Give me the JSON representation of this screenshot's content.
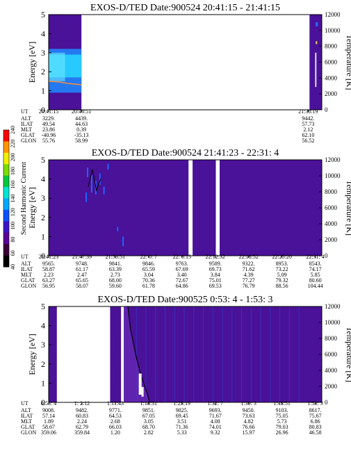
{
  "figure": {
    "colorbar": {
      "label": "Second Harmonic Current",
      "ticks": [
        "40",
        "60",
        "80",
        "100",
        "120",
        "140",
        "160",
        "180",
        "200",
        "220",
        "240"
      ],
      "colors": [
        "#000000",
        "#3a0038",
        "#5a0096",
        "#3c14c8",
        "#0a50ff",
        "#00aaff",
        "#00e6d2",
        "#00c83c",
        "#7ddc00",
        "#f0f000",
        "#ff9600",
        "#ff0000"
      ]
    },
    "colors": {
      "background_field": "#4a1199",
      "cool_band": "#1e8cff",
      "warm_band": "#28d2ff",
      "white_gap": "#ffffff",
      "temperature_line": "#ff8c3c"
    }
  },
  "chart_data": [
    {
      "type": "heatmap",
      "title": "EXOS-D/TED   Date:900524  20:41:15 - 21:41:15",
      "ylabel": "Energy [eV]",
      "ylim": [
        0,
        5
      ],
      "yticks": [
        "0",
        "1",
        "2",
        "3",
        "4",
        "5"
      ],
      "y2label": "Temperature [K]",
      "y2lim": [
        0,
        12000
      ],
      "y2ticks": [
        "0",
        "2000",
        "4000",
        "6000",
        "8000",
        "10000",
        "12000"
      ],
      "orbit_rows": [
        "UT",
        "ALT",
        "ILAT",
        "MLT",
        "GLAT",
        "GLON"
      ],
      "columns": [
        {
          "t": 0.0,
          "UT": "20:41:15",
          "ALT": "3229.",
          "ILAT": "49.54",
          "MLT": "23.86",
          "GLAT": "-40.96",
          "GLON": "55.76"
        },
        {
          "t": 0.12,
          "UT": "20:48:51",
          "ALT": "4439.",
          "ILAT": "44.63",
          "MLT": "0.39",
          "GLAT": "-35.13",
          "GLON": "58.99"
        },
        {
          "t": 0.95,
          "UT": "21:38:19",
          "ALT": "9442.",
          "ILAT": "57.73",
          "MLT": "2.12",
          "GLAT": "62.10",
          "GLON": "56.52"
        }
      ],
      "data_segments": [
        [
          0.0,
          0.12
        ],
        [
          0.955,
          1.0
        ]
      ],
      "temperature_trace": [
        {
          "t": 0.0,
          "T": 3600
        },
        {
          "t": 0.04,
          "T": 3500
        },
        {
          "t": 0.08,
          "T": 3280
        },
        {
          "t": 0.12,
          "T": 3150
        }
      ]
    },
    {
      "type": "heatmap",
      "title": "EXOS-D/TED   Date:900524  21:41:23 - 22:31: 4",
      "ylabel": "Energy [eV]",
      "ylim": [
        0,
        5
      ],
      "yticks": [
        "0",
        "1",
        "2",
        "3",
        "4",
        "5"
      ],
      "y2label": "Temperature [K]",
      "y2lim": [
        0,
        12000
      ],
      "y2ticks": [
        "0",
        "2000",
        "4000",
        "6000",
        "8000",
        "10000",
        "12000"
      ],
      "orbit_rows": [
        "UT",
        "ALT",
        "ILAT",
        "MLT",
        "GLAT",
        "GLON"
      ],
      "columns": [
        {
          "t": 0.0,
          "UT": "21:41:23",
          "ALT": "9565.",
          "ILAT": "58.87",
          "MLT": "2.23",
          "GLAT": "63.27",
          "GLON": "56.95"
        },
        {
          "t": 0.122,
          "UT": "21:47:39",
          "ALT": "9748.",
          "ILAT": "61.17",
          "MLT": "2.47",
          "GLAT": "65.65",
          "GLON": "58.07"
        },
        {
          "t": 0.244,
          "UT": "21:53:51",
          "ALT": "9841.",
          "ILAT": "63.39",
          "MLT": "2.73",
          "GLAT": "68.00",
          "GLON": "59.60"
        },
        {
          "t": 0.366,
          "UT": "22: 0: 7",
          "ALT": "9846.",
          "ILAT": "65.59",
          "MLT": "3.04",
          "GLAT": "70.36",
          "GLON": "61.78"
        },
        {
          "t": 0.488,
          "UT": "22: 6:15",
          "ALT": "9763.",
          "ILAT": "67.69",
          "MLT": "3.40",
          "GLAT": "72.67",
          "GLON": "64.86"
        },
        {
          "t": 0.61,
          "UT": "22:12:32",
          "ALT": "9589.",
          "ILAT": "69.73",
          "MLT": "3.84",
          "GLAT": "75.01",
          "GLON": "69.53"
        },
        {
          "t": 0.732,
          "UT": "22:18:52",
          "ALT": "9322.",
          "ILAT": "71.62",
          "MLT": "4.39",
          "GLAT": "77.27",
          "GLON": "76.79"
        },
        {
          "t": 0.854,
          "UT": "22:25:20",
          "ALT": "8953.",
          "ILAT": "73.22",
          "MLT": "5.09",
          "GLAT": "79.32",
          "GLON": "88.56"
        },
        {
          "t": 0.976,
          "UT": "22:31: 4",
          "ALT": "8543.",
          "ILAT": "74.17",
          "MLT": "5.85",
          "GLAT": "80.60",
          "GLON": "104.44"
        }
      ],
      "data_segments": [
        [
          0.0,
          0.512
        ],
        [
          0.527,
          0.612
        ],
        [
          0.626,
          1.0
        ]
      ]
    },
    {
      "type": "heatmap",
      "title": "EXOS-D/TED   Date:900525  0:53: 4 - 1:53: 3",
      "ylabel": "Energy [eV]",
      "ylim": [
        0,
        5
      ],
      "yticks": [
        "0",
        "1",
        "2",
        "3",
        "4",
        "5"
      ],
      "y2label": "Temperature [K]",
      "y2lim": [
        0,
        12000
      ],
      "y2ticks": [
        "0",
        "2000",
        "4000",
        "6000",
        "8000",
        "10000",
        "12000"
      ],
      "orbit_rows": [
        "UT",
        "ALT",
        "ILAT",
        "MLT",
        "GLAT",
        "GLON"
      ],
      "columns": [
        {
          "t": 0.0,
          "UT": "0:53: 4",
          "ALT": "9008.",
          "ILAT": "57.14",
          "MLT": "1.89",
          "GLAT": "58.67",
          "GLON": "359.06"
        },
        {
          "t": 0.122,
          "UT": "1: 2:12",
          "ALT": "9482.",
          "ILAT": "60.83",
          "MLT": "2.24",
          "GLAT": "62.79",
          "GLON": "359.84"
        },
        {
          "t": 0.244,
          "UT": "1:11:43",
          "ALT": "9771.",
          "ILAT": "64.53",
          "MLT": "2.68",
          "GLAT": "66.03",
          "GLON": "1.20"
        },
        {
          "t": 0.366,
          "UT": "1:18:31",
          "ALT": "9851.",
          "ILAT": "67.05",
          "MLT": "3.05",
          "GLAT": "68.70",
          "GLON": "2.82"
        },
        {
          "t": 0.488,
          "UT": "1:25:19",
          "ALT": "9825.",
          "ILAT": "69.45",
          "MLT": "3.51",
          "GLAT": "71.36",
          "GLON": "5.33"
        },
        {
          "t": 0.61,
          "UT": "1:32: 7",
          "ALT": "9693.",
          "ILAT": "71.67",
          "MLT": "4.08",
          "GLAT": "74.01",
          "GLON": "9.32"
        },
        {
          "t": 0.732,
          "UT": "1:39: 3",
          "ALT": "9450.",
          "ILAT": "73.63",
          "MLT": "4.82",
          "GLAT": "76.66",
          "GLON": "15.97"
        },
        {
          "t": 0.854,
          "UT": "1:45:51",
          "ALT": "9103.",
          "ILAT": "75.05",
          "MLT": "5.73",
          "GLAT": "79.03",
          "GLON": "26.96"
        },
        {
          "t": 0.976,
          "UT": "1:53: 3",
          "ALT": "8617.",
          "ILAT": "75.67",
          "MLT": "6.86",
          "GLAT": "80.83",
          "GLON": "46.58"
        }
      ],
      "data_segments": [
        [
          0.0,
          0.03
        ],
        [
          0.225,
          0.265
        ],
        [
          0.275,
          1.0
        ]
      ]
    }
  ]
}
